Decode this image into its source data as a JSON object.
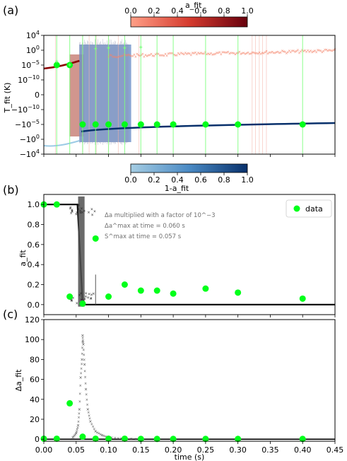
{
  "colors": {
    "data_point": "#00ff1a",
    "data_errbar": "#7dff7d",
    "fit_red": "#8b0000",
    "fit_blue": "#08306b",
    "scatter_orange": "#f4846a",
    "band_blue": "#6b8fc7",
    "band_red": "#c9847a",
    "fit_black": "#000000",
    "band_gray": "#505050"
  },
  "chart_data": [
    {
      "type": "scatter",
      "panel_label": "(a)",
      "ylabel": "T_fit (K)",
      "yscale": "symlog",
      "yticks": [
        "10^4",
        "10^0",
        "10^-5",
        "10^-10",
        "0",
        "-10^-10",
        "-10^-5",
        "-10^0",
        "-10^4"
      ],
      "xlim": [
        0,
        0.45
      ],
      "colorbar_top": {
        "label": "a_fit",
        "ticks": [
          "0.0",
          "0.2",
          "0.4",
          "0.6",
          "0.8",
          "1.0"
        ]
      },
      "colorbar_bottom": {
        "label": "1-a_fit",
        "ticks": [
          "0.0",
          "0.2",
          "0.4",
          "0.6",
          "0.8",
          "1.0"
        ]
      },
      "data_points": [
        {
          "x": 0.02,
          "y": "1e-5"
        },
        {
          "x": 0.04,
          "y": "1e-5"
        },
        {
          "x": 0.06,
          "y": "-1e-5"
        },
        {
          "x": 0.08,
          "y": "-1e-5"
        },
        {
          "x": 0.1,
          "y": "-1e-5"
        },
        {
          "x": 0.125,
          "y": "-1e-5"
        },
        {
          "x": 0.15,
          "y": "-1e-5"
        },
        {
          "x": 0.175,
          "y": "-1e-5"
        },
        {
          "x": 0.2,
          "y": "-1e-5"
        },
        {
          "x": 0.25,
          "y": "-1e-5"
        },
        {
          "x": 0.3,
          "y": "-1e-5"
        },
        {
          "x": 0.4,
          "y": "-1e-5"
        }
      ]
    },
    {
      "type": "scatter",
      "panel_label": "(b)",
      "ylabel": "a_fit",
      "ylim": [
        -0.1,
        1.1
      ],
      "yticks": [
        "0.0",
        "0.2",
        "0.4",
        "0.6",
        "0.8",
        "1.0"
      ],
      "xlim": [
        0,
        0.45
      ],
      "legend": {
        "label": "data",
        "position": "top-right"
      },
      "annotations": [
        "Δa multiplied with a factor of 10^−3",
        "Δa^max at time = 0.060 s",
        "S^max at time = 0.057 s"
      ],
      "series": [
        {
          "name": "data",
          "x": [
            0.0,
            0.02,
            0.04,
            0.06,
            0.08,
            0.1,
            0.125,
            0.15,
            0.175,
            0.2,
            0.25,
            0.3,
            0.4
          ],
          "y": [
            1.0,
            1.0,
            0.08,
            0.01,
            0.66,
            0.08,
            0.2,
            0.14,
            0.14,
            0.11,
            0.16,
            0.12,
            0.06
          ]
        }
      ]
    },
    {
      "type": "scatter",
      "panel_label": "(c)",
      "ylabel": "Δa_fit",
      "xlabel": "time (s)",
      "ylim": [
        -2,
        120
      ],
      "yticks": [
        "0",
        "20",
        "40",
        "60",
        "80",
        "100",
        "120"
      ],
      "xlim": [
        0,
        0.45
      ],
      "xticks": [
        "0.00",
        "0.05",
        "0.10",
        "0.15",
        "0.20",
        "0.25",
        "0.30",
        "0.35",
        "0.40",
        "0.45"
      ],
      "series": [
        {
          "name": "data",
          "x": [
            0.0,
            0.02,
            0.04,
            0.06,
            0.08,
            0.1,
            0.125,
            0.15,
            0.175,
            0.2,
            0.25,
            0.3,
            0.4
          ],
          "y": [
            0.5,
            0.5,
            36,
            2.5,
            0.5,
            0.5,
            0.5,
            0.3,
            0.3,
            0.3,
            0.3,
            0.3,
            0.3
          ]
        },
        {
          "x": [
            0.045,
            0.05,
            0.053,
            0.055,
            0.057,
            0.059,
            0.06,
            0.061,
            0.063,
            0.065,
            0.068,
            0.072,
            0.08,
            0.09,
            0.1,
            0.12,
            0.15
          ],
          "y": [
            2,
            6,
            14,
            30,
            62,
            80,
            104,
            95,
            75,
            50,
            30,
            18,
            8,
            4,
            2,
            1,
            0.5
          ]
        }
      ]
    }
  ]
}
